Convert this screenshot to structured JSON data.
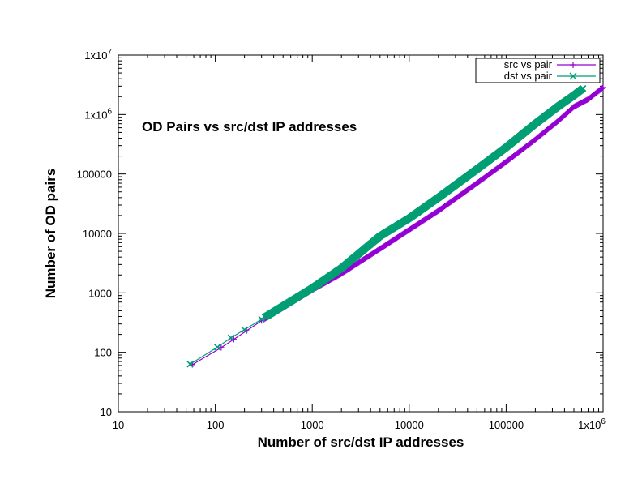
{
  "chart_data": {
    "type": "line",
    "scale": "log-log",
    "title": "OD Pairs vs src/dst IP addresses",
    "xlabel": "Number of src/dst IP addresses",
    "ylabel": "Number of OD pairs",
    "xlim": [
      10,
      1000000
    ],
    "ylim": [
      10,
      10000000
    ],
    "legend_position": "top-right",
    "x_ticks": [
      {
        "value": 10,
        "base": "10",
        "exp": ""
      },
      {
        "value": 100,
        "base": "100",
        "exp": ""
      },
      {
        "value": 1000,
        "base": "1000",
        "exp": ""
      },
      {
        "value": 10000,
        "base": "10000",
        "exp": ""
      },
      {
        "value": 100000,
        "base": "100000",
        "exp": ""
      },
      {
        "value": 1000000,
        "base": "1x10",
        "exp": "6"
      }
    ],
    "y_ticks": [
      {
        "value": 10,
        "base": "10",
        "exp": ""
      },
      {
        "value": 100,
        "base": "100",
        "exp": ""
      },
      {
        "value": 1000,
        "base": "1000",
        "exp": ""
      },
      {
        "value": 10000,
        "base": "10000",
        "exp": ""
      },
      {
        "value": 100000,
        "base": "100000",
        "exp": ""
      },
      {
        "value": 1000000,
        "base": "1x10",
        "exp": "6"
      },
      {
        "value": 10000000,
        "base": "1x10",
        "exp": "7"
      }
    ],
    "series": [
      {
        "name": "src vs pair",
        "color": "#9400d3",
        "marker": "plus",
        "points": [
          [
            58,
            62
          ],
          [
            115,
            120
          ],
          [
            155,
            165
          ],
          [
            210,
            230
          ],
          [
            300,
            340
          ],
          [
            500,
            560
          ],
          [
            1000,
            1120
          ],
          [
            2000,
            2100
          ],
          [
            5000,
            5500
          ],
          [
            10000,
            11500
          ],
          [
            20000,
            24000
          ],
          [
            50000,
            70000
          ],
          [
            100000,
            160000
          ],
          [
            200000,
            380000
          ],
          [
            350000,
            800000
          ],
          [
            500000,
            1350000
          ],
          [
            700000,
            1800000
          ],
          [
            1000000,
            2850000
          ]
        ]
      },
      {
        "name": "dst vs pair",
        "color": "#009e73",
        "marker": "cross",
        "points": [
          [
            55,
            63
          ],
          [
            105,
            122
          ],
          [
            145,
            175
          ],
          [
            200,
            240
          ],
          [
            300,
            360
          ],
          [
            500,
            600
          ],
          [
            1000,
            1200
          ],
          [
            2000,
            2600
          ],
          [
            5000,
            9000
          ],
          [
            10000,
            18000
          ],
          [
            20000,
            40000
          ],
          [
            50000,
            120000
          ],
          [
            100000,
            280000
          ],
          [
            200000,
            700000
          ],
          [
            350000,
            1400000
          ],
          [
            500000,
            2100000
          ],
          [
            620000,
            2750000
          ]
        ]
      }
    ]
  }
}
